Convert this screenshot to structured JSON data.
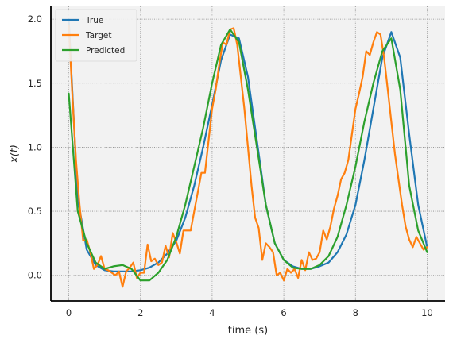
{
  "chart_data": {
    "type": "line",
    "xlabel": "time (s)",
    "ylabel": "x(t)",
    "xlim": [
      -0.5,
      10.5
    ],
    "ylim": [
      -0.2,
      2.1
    ],
    "xticks": [
      0,
      2,
      4,
      6,
      8,
      10
    ],
    "yticks": [
      0.0,
      0.5,
      1.0,
      1.5,
      2.0
    ],
    "xtick_labels": [
      "0",
      "2",
      "4",
      "6",
      "8",
      "10"
    ],
    "ytick_labels": [
      "0.0",
      "0.5",
      "1.0",
      "1.5",
      "2.0"
    ],
    "grid": true,
    "legend_position": "top-left",
    "series": [
      {
        "name": "True",
        "color": "#1f77b4",
        "x": [
          0,
          0.25,
          0.5,
          0.75,
          1,
          1.25,
          1.5,
          1.75,
          2,
          2.25,
          2.5,
          2.75,
          3,
          3.25,
          3.5,
          3.75,
          4,
          4.25,
          4.5,
          4.75,
          5,
          5.25,
          5.5,
          5.75,
          6,
          6.25,
          6.5,
          6.75,
          7,
          7.25,
          7.5,
          7.75,
          8,
          8.25,
          8.5,
          8.75,
          9,
          9.25,
          9.5,
          9.75,
          10
        ],
        "y": [
          2.0,
          0.6,
          0.2,
          0.08,
          0.04,
          0.03,
          0.03,
          0.03,
          0.04,
          0.06,
          0.1,
          0.17,
          0.27,
          0.45,
          0.7,
          1.0,
          1.33,
          1.68,
          1.88,
          1.85,
          1.55,
          1.05,
          0.55,
          0.25,
          0.12,
          0.07,
          0.05,
          0.05,
          0.07,
          0.1,
          0.18,
          0.32,
          0.55,
          0.9,
          1.3,
          1.7,
          1.9,
          1.7,
          1.1,
          0.55,
          0.22
        ]
      },
      {
        "name": "Target",
        "color": "#ff7f0e",
        "x": [
          0,
          0.1,
          0.2,
          0.3,
          0.4,
          0.5,
          0.6,
          0.7,
          0.8,
          0.9,
          1.0,
          1.1,
          1.2,
          1.3,
          1.4,
          1.5,
          1.6,
          1.7,
          1.8,
          1.9,
          2.0,
          2.1,
          2.2,
          2.3,
          2.4,
          2.5,
          2.6,
          2.7,
          2.8,
          2.9,
          3.0,
          3.1,
          3.2,
          3.3,
          3.4,
          3.5,
          3.6,
          3.7,
          3.8,
          3.9,
          4.0,
          4.1,
          4.2,
          4.3,
          4.4,
          4.5,
          4.6,
          4.7,
          4.8,
          4.9,
          5.0,
          5.1,
          5.2,
          5.3,
          5.4,
          5.5,
          5.6,
          5.7,
          5.8,
          5.9,
          6.0,
          6.1,
          6.2,
          6.3,
          6.4,
          6.5,
          6.6,
          6.7,
          6.8,
          6.9,
          7.0,
          7.1,
          7.2,
          7.3,
          7.4,
          7.5,
          7.6,
          7.7,
          7.8,
          7.9,
          8.0,
          8.1,
          8.2,
          8.3,
          8.4,
          8.5,
          8.6,
          8.7,
          8.8,
          8.9,
          9.0,
          9.1,
          9.2,
          9.3,
          9.4,
          9.5,
          9.6,
          9.7,
          9.8,
          9.9,
          10.0
        ],
        "y": [
          1.95,
          1.4,
          0.9,
          0.55,
          0.27,
          0.28,
          0.18,
          0.05,
          0.08,
          0.15,
          0.05,
          0.04,
          0.02,
          0.0,
          0.03,
          -0.09,
          0.03,
          0.06,
          0.1,
          -0.02,
          0.02,
          0.02,
          0.24,
          0.11,
          0.13,
          0.08,
          0.1,
          0.23,
          0.14,
          0.33,
          0.26,
          0.17,
          0.35,
          0.35,
          0.35,
          0.5,
          0.65,
          0.8,
          0.8,
          1.05,
          1.3,
          1.45,
          1.65,
          1.82,
          1.8,
          1.92,
          1.93,
          1.8,
          1.55,
          1.3,
          1.0,
          0.7,
          0.45,
          0.37,
          0.12,
          0.25,
          0.22,
          0.18,
          0.0,
          0.02,
          -0.04,
          0.05,
          0.02,
          0.05,
          -0.02,
          0.12,
          0.04,
          0.18,
          0.12,
          0.13,
          0.18,
          0.35,
          0.28,
          0.38,
          0.52,
          0.62,
          0.75,
          0.8,
          0.9,
          1.1,
          1.3,
          1.42,
          1.55,
          1.75,
          1.72,
          1.82,
          1.9,
          1.88,
          1.7,
          1.45,
          1.2,
          0.95,
          0.75,
          0.55,
          0.38,
          0.28,
          0.22,
          0.3,
          0.25,
          0.2,
          0.22
        ]
      },
      {
        "name": "Predicted",
        "color": "#2ca02c",
        "x": [
          0,
          0.25,
          0.5,
          0.75,
          1,
          1.25,
          1.5,
          1.75,
          2,
          2.25,
          2.5,
          2.75,
          3,
          3.25,
          3.5,
          3.75,
          4,
          4.25,
          4.5,
          4.75,
          5,
          5.25,
          5.5,
          5.75,
          6,
          6.25,
          6.5,
          6.75,
          7,
          7.25,
          7.5,
          7.75,
          8,
          8.25,
          8.5,
          8.75,
          9,
          9.25,
          9.5,
          9.75,
          10
        ],
        "y": [
          1.42,
          0.5,
          0.25,
          0.1,
          0.05,
          0.07,
          0.08,
          0.05,
          -0.04,
          -0.04,
          0.02,
          0.12,
          0.3,
          0.55,
          0.85,
          1.15,
          1.5,
          1.8,
          1.92,
          1.82,
          1.45,
          1.0,
          0.55,
          0.25,
          0.12,
          0.06,
          0.05,
          0.05,
          0.08,
          0.15,
          0.3,
          0.55,
          0.85,
          1.2,
          1.5,
          1.75,
          1.85,
          1.45,
          0.7,
          0.35,
          0.18
        ]
      }
    ]
  }
}
